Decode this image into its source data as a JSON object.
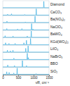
{
  "chart_data": {
    "type": "line",
    "x_label": "νR, cm⁻¹",
    "color": "#3fb0e3",
    "xlim": [
      0,
      1500
    ],
    "xticks": [
      0,
      500,
      1000,
      1500
    ],
    "ylim": [
      0,
      1
    ],
    "tick_labels": "x",
    "series": [
      {
        "name": "Diamond",
        "x": [
          0,
          1322,
          1332,
          1342,
          1500
        ],
        "values": [
          0,
          0,
          1,
          0,
          0
        ]
      },
      {
        "name": "CaCO₃",
        "x": [
          0,
          146,
          156,
          166,
          273,
          283,
          293,
          702,
          712,
          722,
          1076,
          1086,
          1096,
          1500
        ],
        "values": [
          0,
          0,
          0.15,
          0,
          0,
          0.2,
          0,
          0,
          0.1,
          0,
          0,
          1,
          0,
          0
        ]
      },
      {
        "name": "Ba(NO₃)₂",
        "x": [
          0,
          125,
          135,
          145,
          722,
          732,
          742,
          1037,
          1047,
          1057,
          1500
        ],
        "values": [
          0,
          0,
          0.2,
          0,
          0,
          0.1,
          0,
          0,
          1,
          0,
          0
        ]
      },
      {
        "name": "NaClO₃",
        "x": [
          0,
          120,
          130,
          140,
          470,
          480,
          490,
          610,
          620,
          630,
          926,
          936,
          946,
          970,
          980,
          990,
          1500
        ],
        "values": [
          0,
          0,
          0.2,
          0,
          0,
          0.15,
          0,
          0,
          0.2,
          0,
          0,
          1,
          0,
          0,
          0.15,
          0,
          0
        ]
      },
      {
        "name": "BaWO₄",
        "x": [
          0,
          65,
          75,
          85,
          322,
          332,
          342,
          785,
          795,
          805,
          915,
          925,
          935,
          1500
        ],
        "values": [
          0,
          0,
          0.25,
          0,
          0,
          0.2,
          0,
          0,
          0.2,
          0,
          0,
          1,
          0,
          0
        ]
      },
      {
        "name": "KGd(WO₄)₂",
        "x": [
          0,
          80,
          90,
          100,
          190,
          200,
          210,
          390,
          400,
          410,
          675,
          685,
          695,
          758,
          768,
          778,
          891,
          901,
          911,
          1500
        ],
        "values": [
          0,
          0,
          0.3,
          0,
          0,
          0.2,
          0,
          0,
          0.2,
          0,
          0,
          0.3,
          0,
          0,
          0.7,
          0,
          0,
          1,
          0,
          0
        ]
      },
      {
        "name": "LiIO₃",
        "x": [
          0,
          140,
          150,
          160,
          235,
          245,
          255,
          320,
          330,
          340,
          735,
          745,
          755,
          812,
          822,
          832,
          1500
        ],
        "values": [
          0,
          0,
          0.3,
          0,
          0,
          0.2,
          0,
          0,
          0.3,
          0,
          0,
          0.6,
          0,
          0,
          1,
          0,
          0
        ]
      },
      {
        "name": "NaBrO₃",
        "x": [
          0,
          350,
          360,
          370,
          785,
          795,
          805,
          820,
          830,
          840,
          1500
        ],
        "values": [
          0,
          0,
          0.2,
          0,
          0,
          1,
          0,
          0,
          0.3,
          0,
          0
        ]
      },
      {
        "name": "BBO",
        "x": [
          0,
          150,
          160,
          170,
          370,
          380,
          390,
          627,
          637,
          647,
          760,
          770,
          780,
          1500
        ],
        "values": [
          0,
          0,
          0.3,
          0,
          0,
          0.2,
          0,
          0,
          1,
          0,
          0,
          0.2,
          0,
          0
        ]
      },
      {
        "name": "SiO₂",
        "x": [
          0,
          118,
          128,
          138,
          196,
          206,
          216,
          346,
          356,
          366,
          456,
          466,
          476,
          1070,
          1080,
          1090,
          1500
        ],
        "values": [
          0,
          0,
          0.4,
          0,
          0,
          0.3,
          0,
          0,
          0.2,
          0,
          0,
          1,
          0,
          0,
          0.1,
          0,
          0
        ]
      }
    ]
  }
}
